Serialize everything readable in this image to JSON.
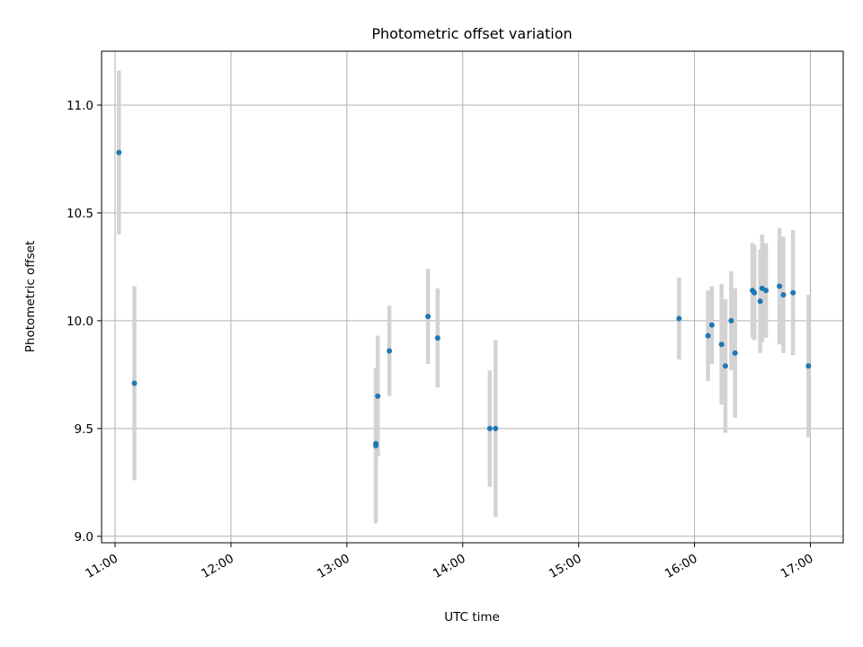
{
  "chart_data": {
    "type": "scatter",
    "title": "Photometric offset variation",
    "xlabel": "UTC time",
    "ylabel": "Photometric offset",
    "xlim": [
      "10:53",
      "17:17"
    ],
    "ylim": [
      8.97,
      11.25
    ],
    "grid": true,
    "x_ticks": [
      "11:00",
      "12:00",
      "13:00",
      "14:00",
      "15:00",
      "16:00",
      "17:00"
    ],
    "y_ticks": [
      9.0,
      9.5,
      10.0,
      10.5,
      11.0
    ],
    "y_tick_labels": [
      "9.0",
      "9.5",
      "10.0",
      "10.5",
      "11.0"
    ],
    "colors": {
      "point": "#1f77b4",
      "errorbar": "#d3d3d3",
      "grid": "#b0b0b0"
    },
    "series": [
      {
        "x": [
          "11:02",
          "11:10",
          "13:15",
          "13:15",
          "13:16",
          "13:22",
          "13:42",
          "13:47",
          "14:14",
          "14:17",
          "15:52",
          "16:07",
          "16:09",
          "16:14",
          "16:16",
          "16:19",
          "16:21",
          "16:30",
          "16:31",
          "16:34",
          "16:35",
          "16:37",
          "16:44",
          "16:46",
          "16:51",
          "16:59"
        ],
        "y": [
          10.78,
          9.71,
          9.42,
          9.43,
          9.65,
          9.86,
          10.02,
          9.92,
          9.5,
          9.5,
          10.01,
          9.93,
          9.98,
          9.89,
          9.79,
          10.0,
          9.85,
          10.14,
          10.13,
          10.09,
          10.15,
          10.14,
          10.16,
          10.12,
          10.13,
          9.79
        ],
        "yerr": [
          0.38,
          0.45,
          0.36,
          0.34,
          0.28,
          0.21,
          0.22,
          0.23,
          0.27,
          0.41,
          0.19,
          0.21,
          0.18,
          0.28,
          0.31,
          0.23,
          0.3,
          0.22,
          0.22,
          0.24,
          0.25,
          0.22,
          0.27,
          0.27,
          0.29,
          0.33
        ]
      }
    ]
  }
}
